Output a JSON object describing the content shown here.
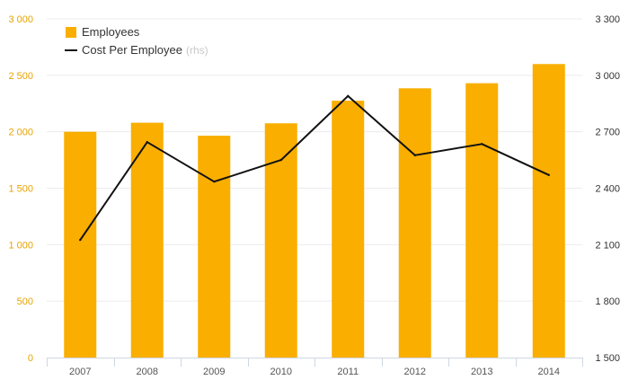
{
  "chart_data": {
    "type": "bar",
    "categories": [
      "2007",
      "2008",
      "2009",
      "2010",
      "2011",
      "2012",
      "2013",
      "2014"
    ],
    "series": [
      {
        "name": "Employees",
        "type": "bar",
        "axis": "left",
        "color": "#f9ae00",
        "values": [
          2000,
          2080,
          1965,
          2075,
          2275,
          2385,
          2430,
          2600
        ]
      },
      {
        "name": "Cost Per Employee",
        "name_suffix": "(rhs)",
        "type": "line",
        "axis": "right",
        "color": "#111111",
        "values": [
          2125,
          2645,
          2435,
          2550,
          2890,
          2575,
          2635,
          2470
        ]
      }
    ],
    "y_left": {
      "range": [
        0,
        3000
      ],
      "ticks": [
        0,
        500,
        1000,
        1500,
        2000,
        2500,
        3000
      ],
      "tick_labels": [
        "0",
        "500",
        "1 000",
        "1 500",
        "2 000",
        "2 500",
        "3 000"
      ],
      "color": "#e8a400"
    },
    "y_right": {
      "range": [
        1500,
        3300
      ],
      "ticks": [
        1500,
        1800,
        2100,
        2400,
        2700,
        3000,
        3300
      ],
      "tick_labels": [
        "1 500",
        "1 800",
        "2 100",
        "2 400",
        "2 700",
        "3 000",
        "3 300"
      ],
      "color": "#333333"
    },
    "grid": true,
    "legend_position": "top-left"
  }
}
